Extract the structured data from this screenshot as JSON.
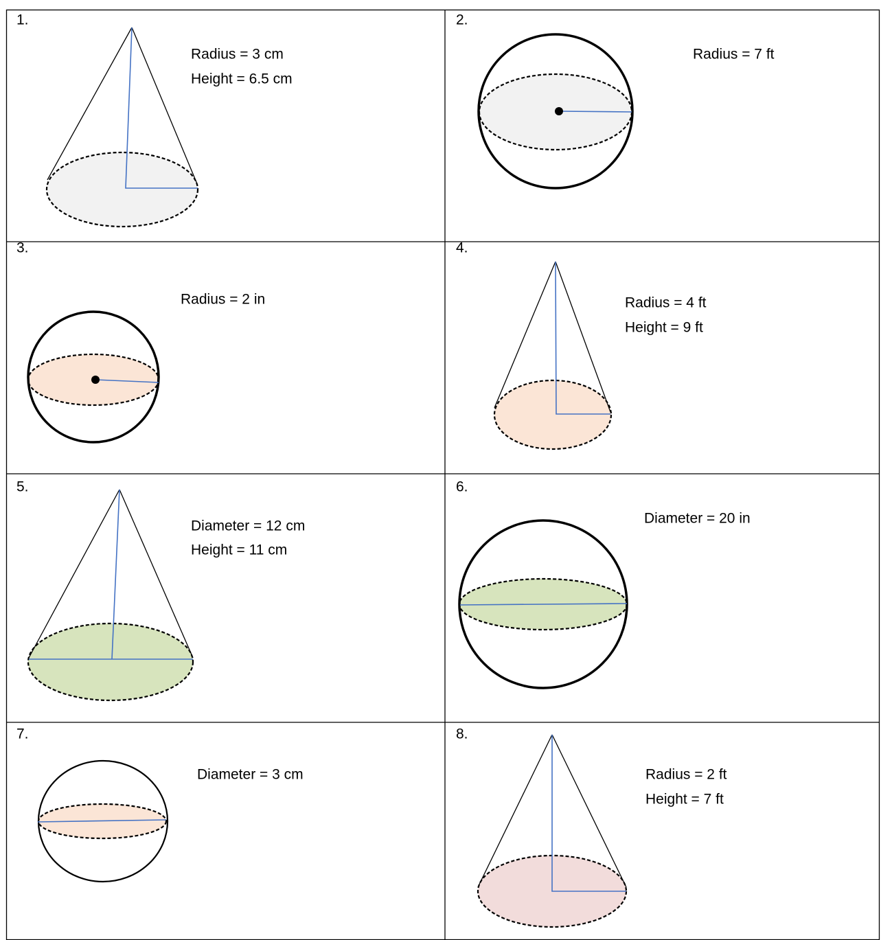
{
  "cells": [
    {
      "number": "1.",
      "lines": [
        "Radius = 3 cm",
        "Height = 6.5 cm"
      ]
    },
    {
      "number": "2.",
      "lines": [
        "Radius = 7 ft"
      ]
    },
    {
      "number": "3.",
      "lines": [
        "Radius = 2 in"
      ]
    },
    {
      "number": "4.",
      "lines": [
        "Radius = 4 ft",
        "Height = 9 ft"
      ]
    },
    {
      "number": "5.",
      "lines": [
        "Diameter =  12 cm",
        "Height = 11 cm"
      ]
    },
    {
      "number": "6.",
      "lines": [
        "Diameter = 20 in"
      ]
    },
    {
      "number": "7.",
      "lines": [
        "Diameter = 3 cm"
      ]
    },
    {
      "number": "8.",
      "lines": [
        "Radius = 2 ft",
        "Height = 7 ft"
      ]
    }
  ]
}
